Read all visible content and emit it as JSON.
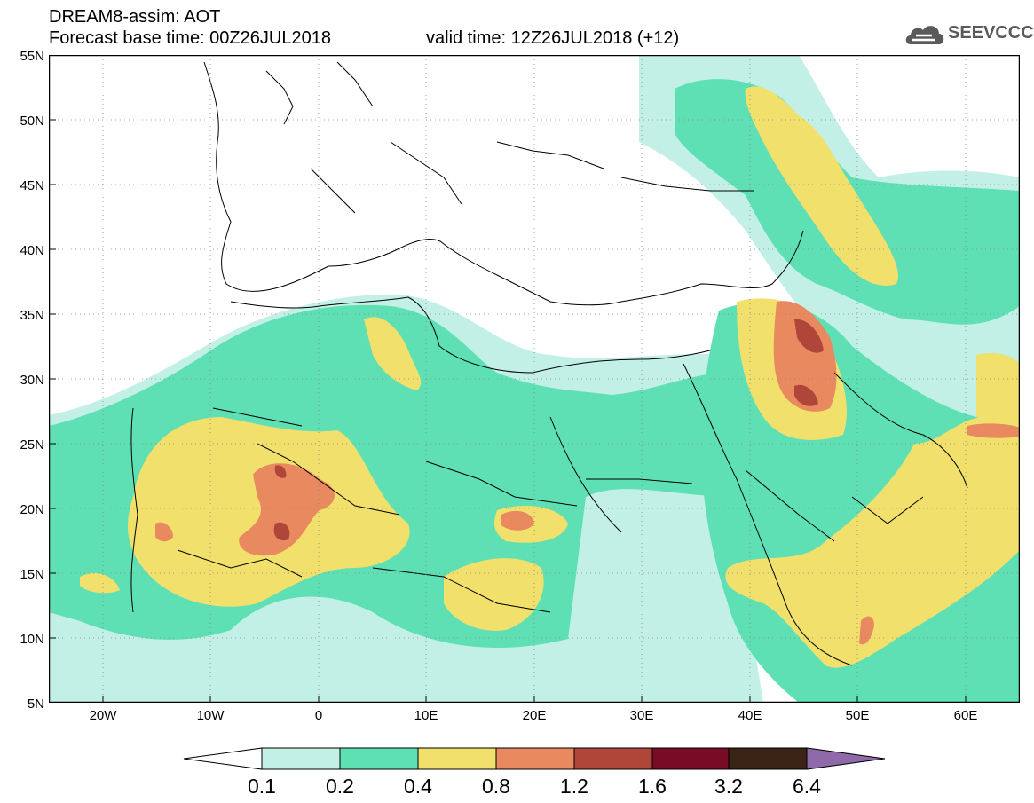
{
  "header": {
    "title": "DREAM8-assim: AOT",
    "base_time": "Forecast base time: 00Z26JUL2018",
    "valid_time": "valid time: 12Z26JUL2018 (+12)",
    "logo_text": "SEEVCCC"
  },
  "axes": {
    "lat_labels": [
      "55N",
      "50N",
      "45N",
      "40N",
      "35N",
      "30N",
      "25N",
      "20N",
      "15N",
      "10N",
      "5N"
    ],
    "lon_labels": [
      "20W",
      "10W",
      "0",
      "10E",
      "20E",
      "30E",
      "40E",
      "50E",
      "60E"
    ]
  },
  "legend": {
    "labels": [
      "0.1",
      "0.2",
      "0.4",
      "0.8",
      "1.2",
      "1.6",
      "3.2",
      "6.4"
    ],
    "colors": [
      "#c2f0e6",
      "#5ee0b4",
      "#f2e06c",
      "#e8895f",
      "#b0463a",
      "#7a0b27",
      "#3a2416",
      "#8e6aaa"
    ]
  },
  "colors": {
    "very_light": "#c2f0e6",
    "light": "#5ee0b4",
    "medium": "#f2e06c",
    "orange": "#e8895f",
    "brown": "#b0463a",
    "dark": "#7a0b27"
  }
}
